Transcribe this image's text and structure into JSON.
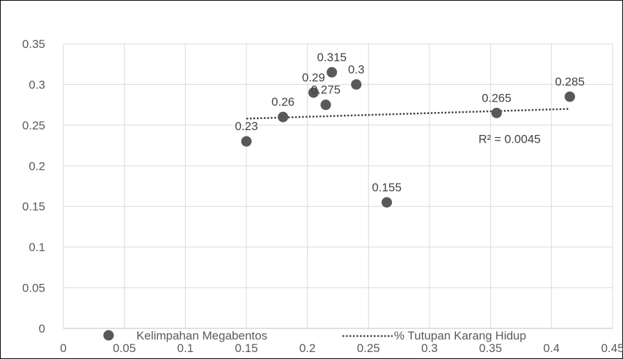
{
  "chart_data": {
    "type": "scatter",
    "title": "",
    "xlabel": "",
    "ylabel": "",
    "xlim": [
      0,
      0.45
    ],
    "ylim": [
      0,
      0.35
    ],
    "x_ticks": [
      "0",
      "0.05",
      "0.1",
      "0.15",
      "0.2",
      "0.25",
      "0.3",
      "0.35",
      "0.4",
      "0.45"
    ],
    "y_ticks": [
      "0",
      "0.05",
      "0.1",
      "0.15",
      "0.2",
      "0.25",
      "0.3",
      "0.35"
    ],
    "grid": true,
    "legend_position": "bottom",
    "series": [
      {
        "name": "Kelimpahan Megabentos",
        "color": "#595959",
        "points": [
          {
            "x": 0.15,
            "y": 0.23,
            "label": "0.23"
          },
          {
            "x": 0.18,
            "y": 0.26,
            "label": "0.26"
          },
          {
            "x": 0.205,
            "y": 0.29,
            "label": "0.29"
          },
          {
            "x": 0.215,
            "y": 0.275,
            "label": "0.275"
          },
          {
            "x": 0.22,
            "y": 0.315,
            "label": "0.315"
          },
          {
            "x": 0.24,
            "y": 0.3,
            "label": "0.3"
          },
          {
            "x": 0.265,
            "y": 0.155,
            "label": "0.155"
          },
          {
            "x": 0.355,
            "y": 0.265,
            "label": "0.265"
          },
          {
            "x": 0.415,
            "y": 0.285,
            "label": "0.285"
          }
        ]
      }
    ],
    "trendline": {
      "name": "% Tutupan Karang Hidup",
      "type": "linear",
      "color": "#404040",
      "x_start": 0.15,
      "x_end": 0.415,
      "y_start": 0.258,
      "y_end": 0.27,
      "r2_label": "R² = 0.0045"
    }
  }
}
